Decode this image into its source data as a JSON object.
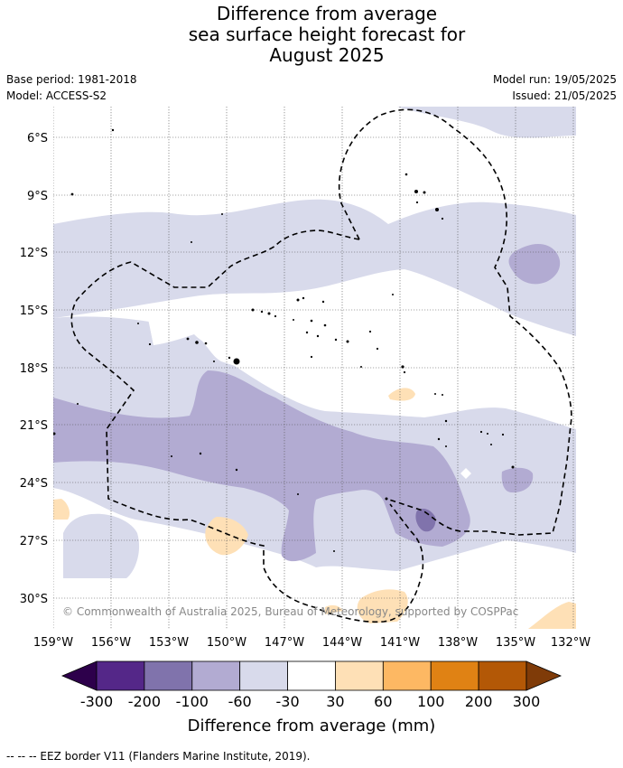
{
  "title_lines": [
    "Difference from average",
    "sea surface height forecast for",
    "August 2025"
  ],
  "base_period": "Base period: 1981-2018",
  "model": "Model: ACCESS-S2",
  "model_run": "Model run: 19/05/2025",
  "issued": "Issued: 21/05/2025",
  "copyright": "© Commonwealth of Australia 2025, Bureau of Meteorology, supported by COSPPac",
  "lat_ticks": [
    "6°S",
    "9°S",
    "12°S",
    "15°S",
    "18°S",
    "21°S",
    "24°S",
    "27°S",
    "30°S"
  ],
  "lon_ticks": [
    "159°W",
    "156°W",
    "153°W",
    "150°W",
    "147°W",
    "144°W",
    "141°W",
    "138°W",
    "135°W",
    "132°W"
  ],
  "colorbar": {
    "labels": [
      "-300",
      "-200",
      "-100",
      "-60",
      "-30",
      "30",
      "60",
      "100",
      "200",
      "300"
    ],
    "colors": {
      "under": "#2d004b",
      "bins": [
        "#542788",
        "#8073ac",
        "#b2abd2",
        "#d8daeb",
        "#ffffff",
        "#fee0b6",
        "#fdb863",
        "#e08214",
        "#b35806"
      ],
      "over": "#7f3b08"
    },
    "label": "Difference from average (mm)"
  },
  "legend_note": "--  --  -- EEZ border V11 (Flanders Marine Institute, 2019)."
}
